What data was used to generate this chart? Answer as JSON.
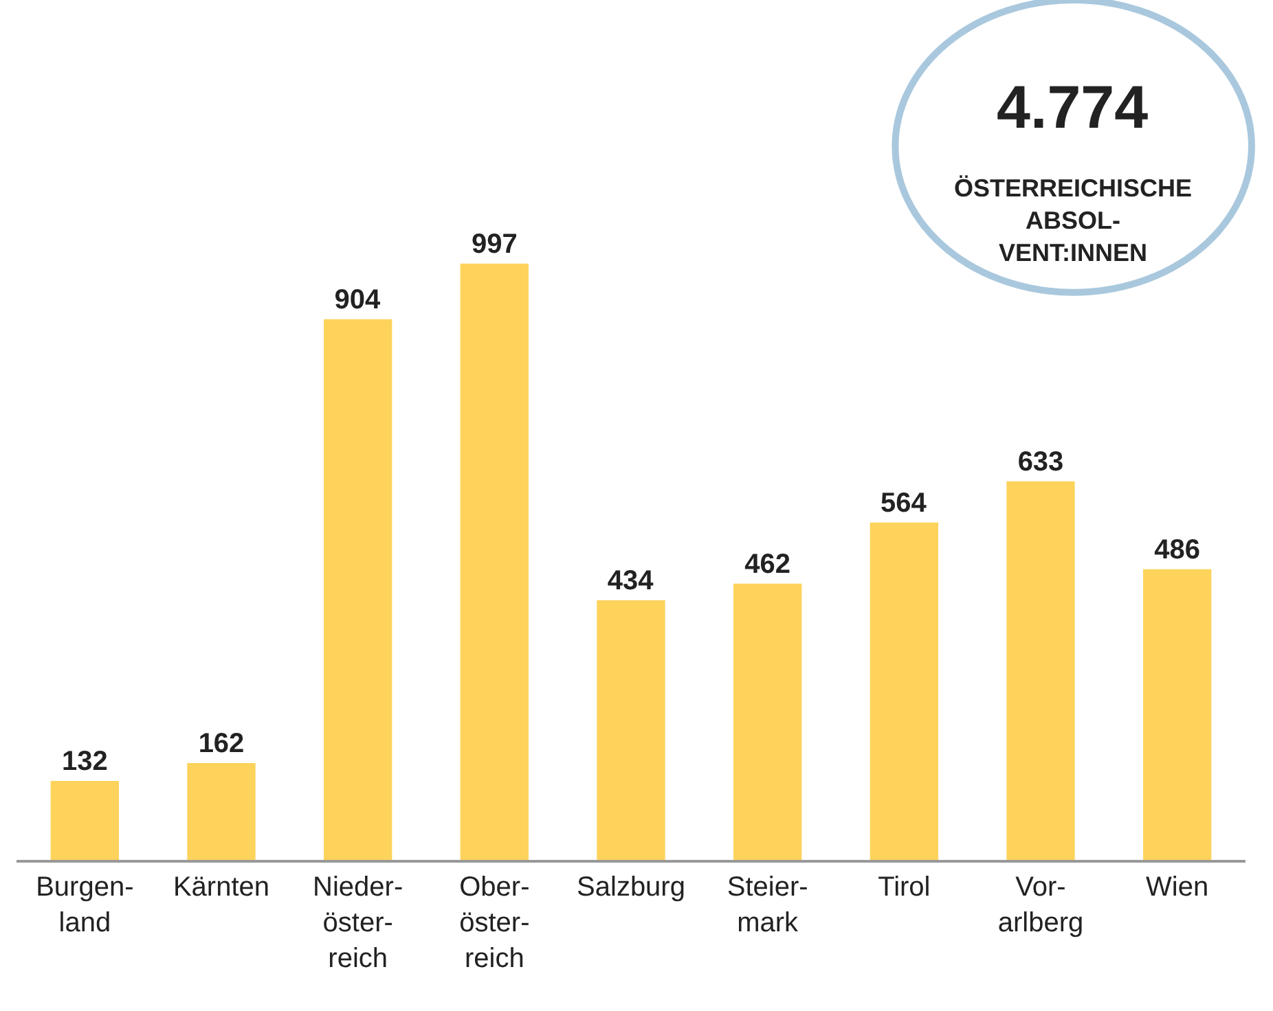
{
  "chart_data": {
    "type": "bar",
    "categories": [
      "Burgen-\nland",
      "Kärnten",
      "Nieder-\nöster-\nreich",
      "Ober-\nöster-\nreich",
      "Salzburg",
      "Steier-\nmark",
      "Tirol",
      "Vor-\narlberg",
      "Wien"
    ],
    "values": [
      132,
      162,
      904,
      997,
      434,
      462,
      564,
      633,
      486
    ],
    "color": "#fdd35b",
    "data_labels": true,
    "grid": false,
    "legend": false,
    "annotations": [
      "4.774",
      "ÖSTERREICHISCHE\nABSOL-\nVENT:INNEN"
    ]
  }
}
